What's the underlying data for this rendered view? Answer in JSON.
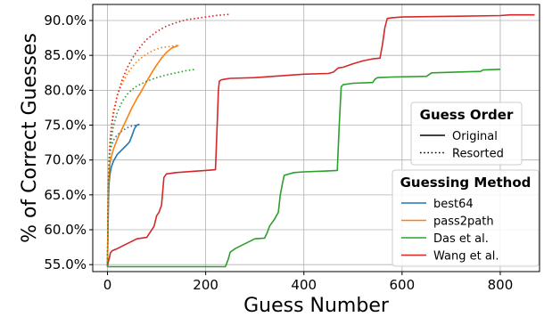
{
  "chart_data": {
    "type": "line",
    "xlabel": "Guess Number",
    "ylabel": "% of Correct Guesses",
    "xlim": [
      -30,
      880
    ],
    "ylim": [
      54.0,
      92.3
    ],
    "xticks": [
      0,
      200,
      400,
      600,
      800
    ],
    "xtick_labels": [
      "0",
      "200",
      "400",
      "600",
      "800"
    ],
    "yticks": [
      55,
      60,
      65,
      70,
      75,
      80,
      85,
      90
    ],
    "ytick_labels": [
      "55.0%",
      "60.0%",
      "65.0%",
      "70.0%",
      "75.0%",
      "80.0%",
      "85.0%",
      "90.0%"
    ],
    "grid": true,
    "legends": [
      {
        "title": "Guess Order",
        "placement": "right-middle",
        "entries": [
          {
            "label": "Original",
            "style": "solid"
          },
          {
            "label": "Resorted",
            "style": "dotted"
          }
        ]
      },
      {
        "title": "Guessing Method",
        "placement": "bottom-right",
        "entries": [
          {
            "label": "best64",
            "color": "#1f77b4"
          },
          {
            "label": "pass2path",
            "color": "#ff7f0e"
          },
          {
            "label": "Das et al.",
            "color": "#2ca02c"
          },
          {
            "label": "Wang et al.",
            "color": "#d62728"
          }
        ]
      }
    ],
    "series": [
      {
        "name": "best64",
        "order": "Original",
        "color": "#1f77b4",
        "style": "solid",
        "x": [
          0,
          1,
          2,
          3,
          5,
          8,
          12,
          20,
          30,
          40,
          45,
          50,
          55,
          60,
          65
        ],
        "y": [
          54.7,
          60.0,
          64.0,
          66.5,
          68.0,
          69.0,
          69.8,
          70.8,
          71.5,
          72.2,
          72.6,
          73.5,
          74.5,
          75.0,
          75.1
        ]
      },
      {
        "name": "best64",
        "order": "Resorted",
        "color": "#1f77b4",
        "style": "dotted",
        "x": [
          0,
          1,
          2,
          3,
          5,
          8,
          12,
          20,
          30,
          40,
          50,
          60,
          65
        ],
        "y": [
          54.7,
          62.0,
          67.0,
          69.5,
          71.0,
          72.0,
          72.8,
          73.6,
          74.2,
          74.6,
          74.9,
          75.0,
          75.1
        ]
      },
      {
        "name": "pass2path",
        "order": "Original",
        "color": "#ff7f0e",
        "style": "solid",
        "x": [
          0,
          1,
          2,
          3,
          5,
          8,
          12,
          20,
          30,
          40,
          50,
          60,
          70,
          80,
          90,
          100,
          110,
          120,
          130,
          140,
          145
        ],
        "y": [
          54.7,
          62.0,
          66.0,
          68.0,
          69.5,
          70.5,
          71.5,
          73.0,
          74.5,
          76.0,
          77.5,
          78.8,
          80.0,
          81.3,
          82.5,
          83.6,
          84.6,
          85.4,
          86.0,
          86.3,
          86.4
        ]
      },
      {
        "name": "pass2path",
        "order": "Resorted",
        "color": "#ff7f0e",
        "style": "dotted",
        "x": [
          0,
          1,
          2,
          3,
          5,
          8,
          12,
          20,
          30,
          40,
          50,
          60,
          70,
          80,
          90,
          100,
          110,
          120,
          130,
          140,
          145
        ],
        "y": [
          54.7,
          64.0,
          68.0,
          70.5,
          73.0,
          75.0,
          77.0,
          79.3,
          81.0,
          82.3,
          83.3,
          84.1,
          84.7,
          85.2,
          85.6,
          85.9,
          86.1,
          86.2,
          86.3,
          86.4,
          86.4
        ]
      },
      {
        "name": "Das et al.",
        "order": "Original",
        "color": "#2ca02c",
        "style": "solid",
        "x": [
          0,
          240,
          242,
          246,
          250,
          260,
          280,
          300,
          320,
          325,
          330,
          340,
          348,
          352,
          356,
          360,
          380,
          400,
          440,
          468,
          472,
          476,
          480,
          500,
          540,
          545,
          550,
          580,
          650,
          660,
          760,
          765,
          800
        ],
        "y": [
          54.7,
          54.7,
          55.0,
          55.8,
          56.8,
          57.3,
          58.0,
          58.7,
          58.8,
          59.5,
          60.5,
          61.5,
          62.5,
          65.0,
          66.5,
          67.8,
          68.2,
          68.3,
          68.4,
          68.5,
          75.0,
          80.5,
          80.8,
          81.0,
          81.1,
          81.6,
          81.8,
          81.9,
          82.0,
          82.5,
          82.7,
          82.9,
          83.0
        ]
      },
      {
        "name": "Wang et al.",
        "order": "Original",
        "color": "#d62728",
        "style": "solid",
        "x": [
          0,
          2,
          4,
          6,
          10,
          20,
          40,
          60,
          80,
          95,
          100,
          105,
          110,
          115,
          120,
          140,
          180,
          200,
          220,
          224,
          226,
          228,
          232,
          240,
          250,
          300,
          400,
          450,
          460,
          470,
          480,
          500,
          520,
          540,
          555,
          560,
          565,
          570,
          580,
          600,
          700,
          800,
          820,
          870
        ],
        "y": [
          54.7,
          55.5,
          56.0,
          56.7,
          57.0,
          57.3,
          58.0,
          58.7,
          58.9,
          60.5,
          62.0,
          62.5,
          63.5,
          67.5,
          68.0,
          68.2,
          68.4,
          68.5,
          68.6,
          76.0,
          80.0,
          81.3,
          81.5,
          81.6,
          81.7,
          81.8,
          82.3,
          82.4,
          82.6,
          83.2,
          83.3,
          83.8,
          84.2,
          84.5,
          84.6,
          86.5,
          89.0,
          90.3,
          90.4,
          90.5,
          90.6,
          90.7,
          90.8,
          90.8
        ]
      },
      {
        "name": "Wang et al.",
        "order": "Resorted",
        "color": "#d62728",
        "style": "dotted",
        "x": [
          0,
          1,
          2,
          3,
          5,
          8,
          12,
          20,
          30,
          40,
          50,
          60,
          70,
          80,
          100,
          120,
          140,
          160,
          180,
          200,
          220,
          250
        ],
        "y": [
          54.7,
          63.0,
          67.0,
          69.5,
          72.0,
          74.5,
          76.5,
          79.2,
          81.5,
          83.2,
          84.5,
          85.6,
          86.5,
          87.3,
          88.4,
          89.2,
          89.7,
          90.1,
          90.3,
          90.5,
          90.7,
          90.9
        ]
      },
      {
        "name": "Das et al.",
        "order": "Resorted",
        "color": "#2ca02c",
        "style": "dotted",
        "x": [
          0,
          1,
          2,
          3,
          5,
          8,
          12,
          20,
          30,
          40,
          50,
          60,
          80,
          100,
          120,
          140,
          160,
          180
        ],
        "y": [
          54.7,
          62.0,
          66.0,
          68.5,
          71.0,
          73.0,
          74.8,
          76.8,
          78.4,
          79.4,
          80.1,
          80.6,
          81.3,
          81.8,
          82.2,
          82.5,
          82.8,
          83.0
        ]
      }
    ]
  }
}
